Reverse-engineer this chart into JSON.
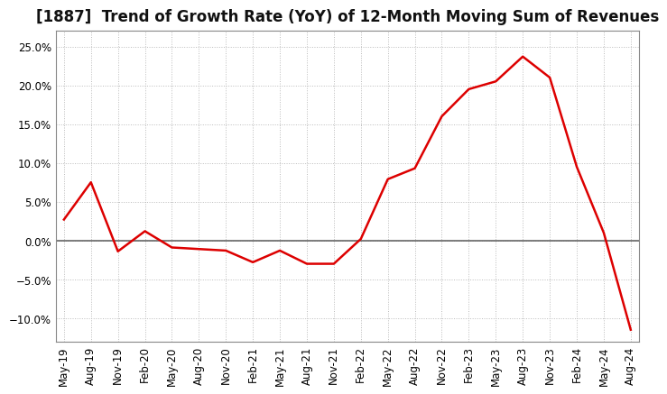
{
  "title": "[1887]  Trend of Growth Rate (YoY) of 12-Month Moving Sum of Revenues",
  "line_color": "#dd0000",
  "background_color": "#ffffff",
  "plot_bg_color": "#ffffff",
  "grid_color": "#bbbbbb",
  "zero_line_color": "#666666",
  "ylim": [
    -0.13,
    0.27
  ],
  "yticks": [
    -0.1,
    -0.05,
    0.0,
    0.05,
    0.1,
    0.15,
    0.2,
    0.25
  ],
  "values": [
    0.027,
    0.075,
    -0.014,
    0.012,
    -0.009,
    -0.011,
    -0.013,
    -0.028,
    -0.013,
    -0.03,
    -0.03,
    0.002,
    0.079,
    0.093,
    0.16,
    0.195,
    0.205,
    0.237,
    0.21,
    0.095,
    0.01,
    -0.115
  ],
  "xtick_labels": [
    "May-19",
    "Aug-19",
    "Nov-19",
    "Feb-20",
    "May-20",
    "Aug-20",
    "Nov-20",
    "Feb-21",
    "May-21",
    "Aug-21",
    "Nov-21",
    "Feb-22",
    "May-22",
    "Aug-22",
    "Nov-22",
    "Feb-23",
    "May-23",
    "Aug-23",
    "Nov-23",
    "Feb-24",
    "May-24",
    "Aug-24"
  ],
  "title_fontsize": 12,
  "tick_fontsize": 8.5,
  "line_width": 1.8
}
